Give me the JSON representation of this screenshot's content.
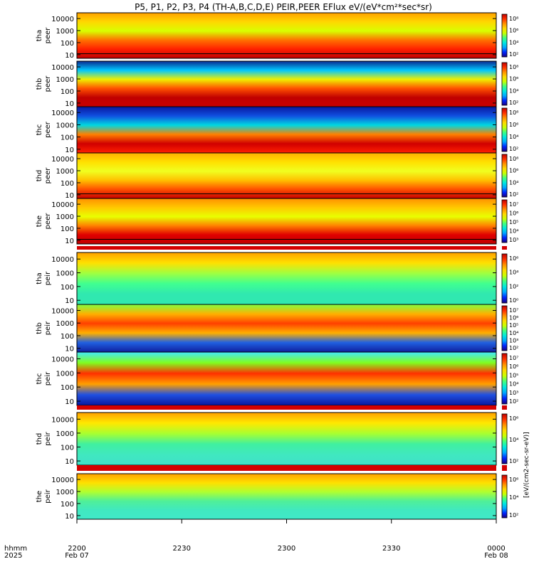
{
  "title": "P5, P1, P2, P3, P4 (TH-A,B,C,D,E) PEIR,PEER EFlux eV/(eV*cm²*sec*sr)",
  "colorbar_label": "[eV/(cm2-sec-sr-eV)]",
  "colors": {
    "spectrum": [
      "#1a0080",
      "#0026ff",
      "#00a8ff",
      "#00e8e0",
      "#40ff80",
      "#c8ff00",
      "#ffd800",
      "#ff9000",
      "#ff3000",
      "#c00000"
    ],
    "trace": "#000000",
    "gap_stripe": "#d40000"
  },
  "x_axis": {
    "row_label_top": "hhmm",
    "row_label_bottom": "2025",
    "ticks": [
      {
        "time": "2200",
        "date": "Feb 07"
      },
      {
        "time": "2230",
        "date": ""
      },
      {
        "time": "2300",
        "date": ""
      },
      {
        "time": "2330",
        "date": ""
      },
      {
        "time": "0000",
        "date": "Feb 08"
      }
    ]
  },
  "chart_data": [
    {
      "type": "heatmap",
      "probe": "tha",
      "species": "peer",
      "label_top": "tha",
      "label_bottom": "peer",
      "yticks": [
        "10000",
        "1000",
        "100",
        "10"
      ],
      "ylim": [
        5,
        30000
      ],
      "log_y": true,
      "cbar_ticks": [
        "10⁸",
        "10⁶",
        "10⁴",
        "10²"
      ],
      "fill": [
        "#ffa000",
        "#ffd800",
        "#d8ff00",
        "#ff7000",
        "#ff2000",
        "#c00000"
      ],
      "trace": true
    },
    {
      "type": "heatmap",
      "probe": "thb",
      "species": "peer",
      "label_top": "thb",
      "label_bottom": "peer",
      "yticks": [
        "10000",
        "1000",
        "100",
        "10"
      ],
      "ylim": [
        5,
        30000
      ],
      "log_y": true,
      "cbar_ticks": [
        "10⁸",
        "10⁶",
        "10⁴",
        "10²"
      ],
      "fill": [
        "#0a2a90",
        "#00c8ff",
        "#f0f000",
        "#ff5000",
        "#c00000",
        "#c80000"
      ],
      "trace": false
    },
    {
      "type": "heatmap",
      "probe": "thc",
      "species": "peer",
      "label_top": "thc",
      "label_bottom": "peer",
      "yticks": [
        "10000",
        "1000",
        "100",
        "10"
      ],
      "ylim": [
        5,
        30000
      ],
      "log_y": true,
      "cbar_ticks": [
        "10⁸",
        "10⁶",
        "10⁴",
        "10²"
      ],
      "fill": [
        "#0818a0",
        "#1050e0",
        "#00d8e0",
        "#ff8000",
        "#d00000",
        "#ff2000"
      ],
      "trace": false
    },
    {
      "type": "heatmap",
      "probe": "thd",
      "species": "peer",
      "label_top": "thd",
      "label_bottom": "peer",
      "yticks": [
        "10000",
        "1000",
        "100",
        "10"
      ],
      "ylim": [
        5,
        30000
      ],
      "log_y": true,
      "cbar_ticks": [
        "10⁸",
        "10⁶",
        "10⁴",
        "10²"
      ],
      "fill": [
        "#ffb000",
        "#ffe000",
        "#f0ff20",
        "#ffc000",
        "#ff5000",
        "#c80000"
      ],
      "trace": true
    },
    {
      "type": "heatmap",
      "probe": "the",
      "species": "peer",
      "label_top": "the",
      "label_bottom": "peer",
      "yticks": [
        "10000",
        "1000",
        "100",
        "10"
      ],
      "ylim": [
        5,
        30000
      ],
      "log_y": true,
      "cbar_ticks": [
        "10⁷",
        "10⁶",
        "10⁵",
        "10⁴",
        "10³"
      ],
      "fill": [
        "#ff9000",
        "#ffc800",
        "#e8ff00",
        "#ff8000",
        "#e00000",
        "#c00000"
      ],
      "trace": true
    },
    {
      "type": "heatmap",
      "probe": "tha",
      "species": "peir",
      "label_top": "tha",
      "label_bottom": "peir",
      "yticks": [
        "10000",
        "1000",
        "100",
        "10"
      ],
      "ylim": [
        5,
        30000
      ],
      "log_y": true,
      "cbar_ticks": [
        "10⁶",
        "10⁴",
        "10²",
        "10⁰"
      ],
      "fill": [
        "#ffa000",
        "#ffe000",
        "#a0ff40",
        "#40ff90",
        "#30e8b0",
        "#30e8b0"
      ],
      "trace": false
    },
    {
      "type": "heatmap",
      "probe": "thb",
      "species": "peir",
      "label_top": "thb",
      "label_bottom": "peir",
      "yticks": [
        "10000",
        "1000",
        "100",
        "10"
      ],
      "ylim": [
        5,
        30000
      ],
      "log_y": true,
      "cbar_ticks": [
        "10⁷",
        "10⁶",
        "10⁵",
        "10⁴",
        "10³",
        "10²"
      ],
      "fill": [
        "#80ff40",
        "#ffb000",
        "#ff4000",
        "#ffb000",
        "#2060e0",
        "#1020a0"
      ],
      "trace": false
    },
    {
      "type": "heatmap",
      "probe": "thc",
      "species": "peir",
      "label_top": "thc",
      "label_bottom": "peir",
      "yticks": [
        "10000",
        "1000",
        "100",
        "10"
      ],
      "ylim": [
        5,
        30000
      ],
      "log_y": true,
      "cbar_ticks": [
        "10⁷",
        "10⁶",
        "10⁵",
        "10⁴",
        "10³",
        "10²"
      ],
      "fill": [
        "#40e8ff",
        "#80ff20",
        "#ff3000",
        "#ffa000",
        "#2050e0",
        "#0818a0"
      ],
      "trace": false
    },
    {
      "type": "heatmap",
      "probe": "thd",
      "species": "peir",
      "label_top": "thd",
      "label_bottom": "peir",
      "yticks": [
        "10000",
        "1000",
        "100",
        "10"
      ],
      "ylim": [
        5,
        30000
      ],
      "log_y": true,
      "cbar_ticks": [
        "10⁶",
        "10⁴",
        "10²"
      ],
      "fill": [
        "#ffa000",
        "#ffe800",
        "#a8ff30",
        "#40f0a0",
        "#40e8c0",
        "#40e0c8"
      ],
      "trace": false
    },
    {
      "type": "heatmap",
      "probe": "the",
      "species": "peir",
      "label_top": "the",
      "label_bottom": "peir",
      "yticks": [
        "10000",
        "1000",
        "100",
        "10"
      ],
      "ylim": [
        5,
        30000
      ],
      "log_y": true,
      "cbar_ticks": [
        "10⁶",
        "10⁴",
        "10²"
      ],
      "fill": [
        "#ffa000",
        "#ffe000",
        "#b0ff30",
        "#50f098",
        "#40e8c0",
        "#40e8c8"
      ],
      "trace": false
    }
  ]
}
